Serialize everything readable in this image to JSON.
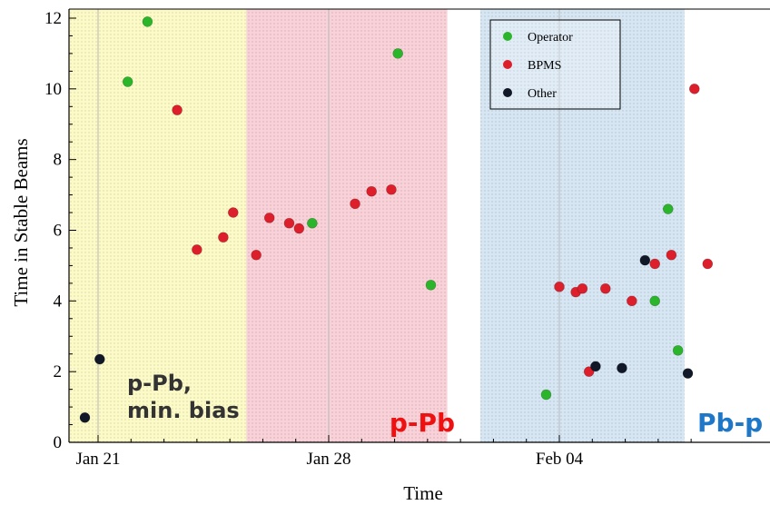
{
  "chart_data": {
    "type": "scatter",
    "xlabel": "Time",
    "ylabel": "Time in Stable Beams",
    "ylim": [
      0,
      12.2
    ],
    "xlim_days": [
      -1.4,
      17.8
    ],
    "x_ticks": [
      {
        "label": "Jan 21",
        "day": 0
      },
      {
        "label": "Jan 28",
        "day": 7
      },
      {
        "label": "Feb 04",
        "day": 14
      }
    ],
    "y_ticks": [
      0,
      2,
      4,
      6,
      8,
      10,
      12
    ],
    "regions": [
      {
        "name": "p-Pb-min-bias",
        "label_lines": [
          "p-Pb,",
          "min. bias"
        ],
        "x_start": -1.0,
        "x_end": 4.5,
        "color": "#fbfac8",
        "dot": "#d8d89a",
        "label_color": "#333333"
      },
      {
        "name": "p-Pb",
        "label_lines": [
          "p-Pb"
        ],
        "x_start": 4.5,
        "x_end": 10.6,
        "color": "#f7d2d8",
        "dot": "#e0a6b0",
        "label_color": "#ee1111"
      },
      {
        "name": "Pb-p",
        "label_lines": [
          "Pb-p"
        ],
        "x_start": 11.6,
        "x_end": 17.8,
        "color": "#d8e6f2",
        "dot": "#a8c2da",
        "label_color": "#1f77c8"
      }
    ],
    "series": [
      {
        "name": "Operator",
        "color": "#2bb52b",
        "points": [
          [
            0.9,
            10.2
          ],
          [
            1.5,
            11.9
          ],
          [
            6.5,
            6.2
          ],
          [
            9.1,
            11.0
          ],
          [
            10.1,
            4.45
          ],
          [
            13.6,
            1.35
          ],
          [
            16.9,
            4.0
          ],
          [
            17.3,
            6.6
          ],
          [
            17.6,
            2.6
          ]
        ]
      },
      {
        "name": "BPMS",
        "color": "#dd1f2b",
        "points": [
          [
            2.4,
            9.4
          ],
          [
            3.0,
            5.45
          ],
          [
            3.8,
            5.8
          ],
          [
            4.1,
            6.5
          ],
          [
            4.8,
            5.3
          ],
          [
            5.2,
            6.35
          ],
          [
            5.8,
            6.2
          ],
          [
            6.1,
            6.05
          ],
          [
            7.8,
            6.75
          ],
          [
            8.3,
            7.1
          ],
          [
            8.9,
            7.15
          ],
          [
            14.0,
            4.4
          ],
          [
            14.5,
            4.25
          ],
          [
            14.7,
            4.35
          ],
          [
            14.9,
            2.0
          ],
          [
            15.4,
            4.35
          ],
          [
            16.2,
            4.0
          ],
          [
            16.9,
            5.05
          ],
          [
            17.4,
            5.3
          ],
          [
            18.1,
            10.0
          ],
          [
            18.5,
            5.05
          ]
        ]
      },
      {
        "name": "Other",
        "color": "#111827",
        "points": [
          [
            -0.4,
            0.7
          ],
          [
            0.05,
            2.35
          ],
          [
            15.1,
            2.15
          ],
          [
            15.9,
            2.1
          ],
          [
            17.9,
            1.95
          ],
          [
            16.6,
            5.15
          ]
        ]
      }
    ],
    "legend": {
      "position": "top-right",
      "entries": [
        "Operator",
        "BPMS",
        "Other"
      ]
    },
    "grid": true
  }
}
